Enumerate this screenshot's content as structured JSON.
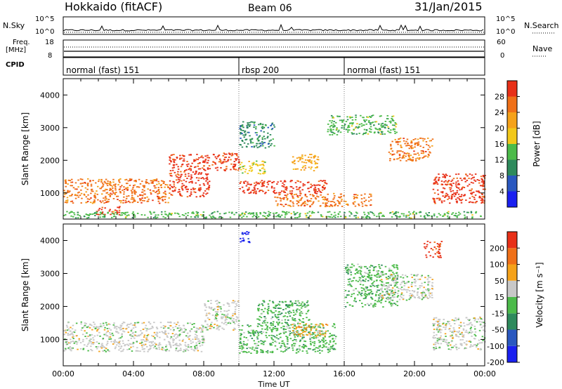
{
  "header": {
    "station": "Hokkaido (fitACF)",
    "beam": "Beam 06",
    "date": "31/Jan/2015"
  },
  "status_panels": {
    "nsky": {
      "label": "N.Sky",
      "ticks": [
        "10^5",
        "10^0"
      ],
      "right_ticks": [
        "10^5",
        "10^0"
      ],
      "right_label": "N.Search"
    },
    "freq": {
      "label_line1": "Freq.",
      "label_line2": "[MHz]",
      "ticks": [
        "18",
        "8"
      ],
      "right_ticks": [
        "60",
        "0"
      ],
      "right_label": "Nave"
    },
    "cpid": {
      "label": "CPID",
      "segments": [
        {
          "label": "normal (fast) 151",
          "start": 0,
          "end": 10
        },
        {
          "label": "rbsp 200",
          "start": 10,
          "end": 16
        },
        {
          "label": "normal (fast) 151",
          "start": 16,
          "end": 24
        }
      ]
    }
  },
  "chart_data": [
    {
      "type": "heatmap",
      "name": "power",
      "ylabel": "Slant Range [km]",
      "xlim": [
        0,
        24
      ],
      "ylim": [
        200,
        4500
      ],
      "yticks": [
        1000,
        2000,
        3000,
        4000
      ],
      "colorbar": {
        "label": "Power [dB]",
        "ticks": [
          "4",
          "8",
          "12",
          "16",
          "20",
          "24",
          "28"
        ],
        "colors": [
          "#1a20f0",
          "#2a58c0",
          "#2e8a5c",
          "#4cbb4a",
          "#f2c81a",
          "#f5a21a",
          "#f07018",
          "#e83018"
        ]
      },
      "bands": [
        {
          "t0": 0.0,
          "t1": 6.0,
          "r0": 700,
          "r1": 1450,
          "c": 6
        },
        {
          "t0": 6.0,
          "t1": 8.3,
          "r0": 900,
          "r1": 2200,
          "c": 7
        },
        {
          "t0": 1.8,
          "t1": 3.2,
          "r0": 350,
          "r1": 600,
          "c": 7
        },
        {
          "t0": 8.3,
          "t1": 10.0,
          "r0": 1700,
          "r1": 2250,
          "c": 7
        },
        {
          "t0": 10.0,
          "t1": 11.5,
          "r0": 1600,
          "r1": 2000,
          "c": 4
        },
        {
          "t0": 10.0,
          "t1": 15.0,
          "r0": 1000,
          "r1": 1400,
          "c": 7
        },
        {
          "t0": 12.0,
          "t1": 17.5,
          "r0": 600,
          "r1": 1000,
          "c": 6
        },
        {
          "t0": 10.0,
          "t1": 12.0,
          "r0": 2400,
          "r1": 3200,
          "c": 2
        },
        {
          "t0": 13.0,
          "t1": 14.5,
          "r0": 1700,
          "r1": 2200,
          "c": 5
        },
        {
          "t0": 15.0,
          "t1": 19.0,
          "r0": 2800,
          "r1": 3400,
          "c": 3
        },
        {
          "t0": 18.5,
          "t1": 21.0,
          "r0": 2000,
          "r1": 2700,
          "c": 6
        },
        {
          "t0": 21.0,
          "t1": 24.0,
          "r0": 700,
          "r1": 1600,
          "c": 7
        },
        {
          "t0": 0.0,
          "t1": 24.0,
          "r0": 250,
          "r1": 450,
          "c": 3
        }
      ]
    },
    {
      "type": "heatmap",
      "name": "velocity",
      "ylabel": "Slant Range [km]",
      "xlabel": "Time UT",
      "xlim": [
        0,
        24
      ],
      "ylim": [
        200,
        4500
      ],
      "xticks": [
        "00:00",
        "04:00",
        "08:00",
        "12:00",
        "16:00",
        "20:00",
        "00:00"
      ],
      "yticks": [
        1000,
        2000,
        3000,
        4000
      ],
      "colorbar": {
        "label": "Velocity [m s⁻¹]",
        "ticks": [
          "200",
          "100",
          "50",
          "15",
          "-15",
          "-50",
          "-100",
          "-200"
        ],
        "colors": [
          "#1a20f0",
          "#2a58c0",
          "#2e8a5c",
          "#4cbb4a",
          "#c8c8c8",
          "#f5a21a",
          "#f07018",
          "#e83018"
        ]
      },
      "bands": [
        {
          "t0": 0.0,
          "t1": 8.0,
          "r0": 650,
          "r1": 1550,
          "c": 4
        },
        {
          "t0": 8.0,
          "t1": 10.0,
          "r0": 1300,
          "r1": 2200,
          "c": 4
        },
        {
          "t0": 10.0,
          "t1": 15.5,
          "r0": 600,
          "r1": 1500,
          "c": 3
        },
        {
          "t0": 11.0,
          "t1": 14.0,
          "r0": 1500,
          "r1": 2200,
          "c": 3
        },
        {
          "t0": 13.0,
          "t1": 15.0,
          "r0": 1100,
          "r1": 1500,
          "c": 5
        },
        {
          "t0": 16.0,
          "t1": 19.0,
          "r0": 2000,
          "r1": 3300,
          "c": 3
        },
        {
          "t0": 18.0,
          "t1": 21.0,
          "r0": 2200,
          "r1": 3000,
          "c": 4
        },
        {
          "t0": 21.0,
          "t1": 24.0,
          "r0": 700,
          "r1": 1700,
          "c": 4
        },
        {
          "t0": 10.0,
          "t1": 10.6,
          "r0": 3900,
          "r1": 4300,
          "c": 0
        },
        {
          "t0": 20.5,
          "t1": 21.5,
          "r0": 3500,
          "r1": 4000,
          "c": 7
        }
      ]
    }
  ]
}
